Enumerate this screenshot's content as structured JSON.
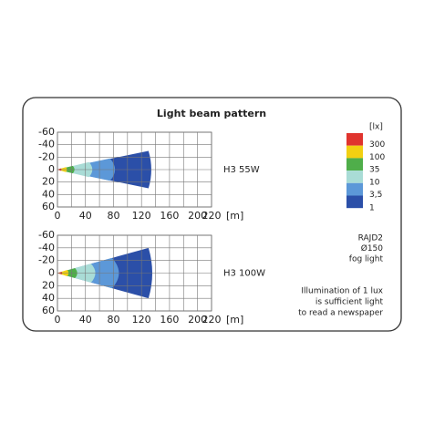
{
  "title": "Light beam pattern",
  "legend": {
    "title": "[lx]",
    "colors": [
      "#e0342e",
      "#f2d012",
      "#4fae4a",
      "#a9dcd6",
      "#5c98d8",
      "#2b4fa8"
    ],
    "ticks": [
      300,
      100,
      35,
      10,
      {
        "value": 3.5,
        "label": "3,5"
      },
      1
    ]
  },
  "device": [
    "RAJD2",
    "Ø150",
    "fog light"
  ],
  "note": [
    "Illumination of 1 lux",
    "is sufficient light",
    "to read a newspaper"
  ],
  "chart_data": [
    {
      "type": "beam",
      "label": "H3 55W",
      "x_unit": "[m]",
      "xlim": [
        0,
        220
      ],
      "xticks": [
        0,
        40,
        80,
        120,
        160,
        200,
        220
      ],
      "xgrid": [
        0,
        20,
        40,
        60,
        80,
        100,
        120,
        140,
        160,
        180,
        200,
        220
      ],
      "ylim": [
        -60,
        60
      ],
      "yticks": [
        -60,
        -40,
        -20,
        0,
        20,
        40,
        60
      ],
      "grid": true,
      "contours": [
        {
          "reach": 5,
          "half_width": 2
        },
        {
          "reach": 12,
          "half_width": 4
        },
        {
          "reach": 22,
          "half_width": 6
        },
        {
          "reach": 45,
          "half_width": 12
        },
        {
          "reach": 75,
          "half_width": 18
        },
        {
          "reach": 130,
          "half_width": 30
        }
      ]
    },
    {
      "type": "beam",
      "label": "H3 100W",
      "x_unit": "[m]",
      "xlim": [
        0,
        220
      ],
      "xticks": [
        0,
        40,
        80,
        120,
        160,
        200,
        220
      ],
      "xgrid": [
        0,
        20,
        40,
        60,
        80,
        100,
        120,
        140,
        160,
        180,
        200,
        220
      ],
      "ylim": [
        -60,
        60
      ],
      "yticks": [
        -60,
        -40,
        -20,
        0,
        20,
        40,
        60
      ],
      "grid": true,
      "contours": [
        {
          "reach": 6,
          "half_width": 2
        },
        {
          "reach": 14,
          "half_width": 5
        },
        {
          "reach": 25,
          "half_width": 8
        },
        {
          "reach": 48,
          "half_width": 15
        },
        {
          "reach": 78,
          "half_width": 24
        },
        {
          "reach": 130,
          "half_width": 40
        }
      ]
    }
  ]
}
